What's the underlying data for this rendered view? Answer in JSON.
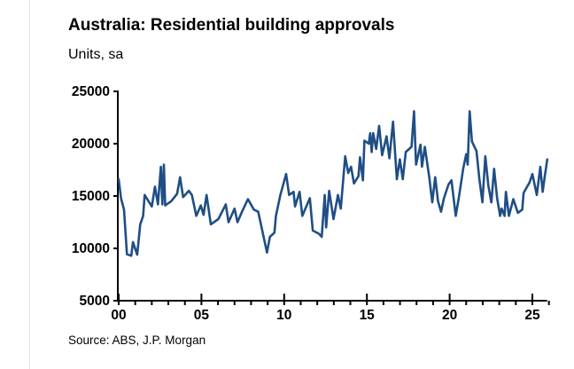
{
  "chart_data": {
    "type": "line",
    "title": "Australia: Residential building approvals",
    "subtitle": "Units, sa",
    "source": "Source: ABS, J.P. Morgan",
    "xlabel": "",
    "ylabel": "",
    "xlim": [
      0,
      26
    ],
    "ylim": [
      5000,
      25000
    ],
    "x_ticks": [
      0,
      5,
      10,
      15,
      20,
      25
    ],
    "x_tick_labels": [
      "00",
      "05",
      "10",
      "15",
      "20",
      "25"
    ],
    "y_ticks": [
      5000,
      10000,
      15000,
      20000,
      25000
    ],
    "y_tick_labels": [
      "5000",
      "10000",
      "15000",
      "20000",
      "25000"
    ],
    "grid": false,
    "legend": "none",
    "series": [
      {
        "name": "Residential building approvals",
        "color": "#1f4e85",
        "x": [
          0,
          0.14,
          0.32,
          0.5,
          0.76,
          0.86,
          1.12,
          1.3,
          1.48,
          1.57,
          2.0,
          2.19,
          2.37,
          2.55,
          2.64,
          2.73,
          2.81,
          3.17,
          3.53,
          3.71,
          3.89,
          4.24,
          4.42,
          4.69,
          4.96,
          5.13,
          5.31,
          5.57,
          6.02,
          6.47,
          6.64,
          7.0,
          7.18,
          7.45,
          7.81,
          8.17,
          8.43,
          8.96,
          9.14,
          9.41,
          9.5,
          9.77,
          10.12,
          10.3,
          10.57,
          10.66,
          10.93,
          11.1,
          11.55,
          11.73,
          12.1,
          12.27,
          12.45,
          12.54,
          12.72,
          12.98,
          13.25,
          13.42,
          13.69,
          13.87,
          14.04,
          14.22,
          14.49,
          14.58,
          14.76,
          14.85,
          15.11,
          15.2,
          15.29,
          15.38,
          15.56,
          15.74,
          15.92,
          16.19,
          16.36,
          16.58,
          16.81,
          16.99,
          17.17,
          17.35,
          17.7,
          17.85,
          17.97,
          18.24,
          18.33,
          18.5,
          18.77,
          18.95,
          19.13,
          19.3,
          19.48,
          19.66,
          19.93,
          20.11,
          20.37,
          20.55,
          20.82,
          21.0,
          21.09,
          21.21,
          21.35,
          21.62,
          21.8,
          21.98,
          22.16,
          22.34,
          22.52,
          22.69,
          22.87,
          23.05,
          23.14,
          23.32,
          23.4,
          23.58,
          23.85,
          24.12,
          24.39,
          24.47,
          24.83,
          25.0,
          25.27,
          25.48,
          25.62,
          25.77,
          25.9
        ],
        "values": [
          16600,
          14800,
          13700,
          9430,
          9300,
          10600,
          9400,
          12300,
          13100,
          15100,
          14000,
          15900,
          14200,
          17800,
          14200,
          18000,
          14100,
          14500,
          15200,
          16800,
          14900,
          15500,
          15100,
          13100,
          14100,
          13200,
          15100,
          12300,
          12800,
          14200,
          12500,
          13800,
          12500,
          13500,
          14700,
          13700,
          13500,
          9600,
          11100,
          11500,
          13100,
          15100,
          17100,
          15100,
          15400,
          14000,
          15400,
          13100,
          14800,
          11700,
          11400,
          11100,
          15100,
          12000,
          15500,
          12800,
          15100,
          13800,
          18800,
          17200,
          17800,
          16200,
          16900,
          18700,
          16500,
          20300,
          20000,
          21000,
          19200,
          21000,
          19500,
          21700,
          18900,
          20700,
          18600,
          22100,
          16600,
          18500,
          16600,
          19200,
          19700,
          23100,
          18000,
          19900,
          17800,
          19700,
          16800,
          14400,
          16800,
          14500,
          13500,
          14800,
          16100,
          16500,
          13100,
          14800,
          17600,
          19000,
          18000,
          23100,
          20200,
          19300,
          16600,
          14400,
          18800,
          16000,
          14400,
          17600,
          14800,
          13100,
          13800,
          13100,
          15400,
          13100,
          14700,
          13400,
          13700,
          15300,
          16300,
          17100,
          15100,
          17800,
          15400,
          17100,
          18500
        ]
      }
    ]
  }
}
